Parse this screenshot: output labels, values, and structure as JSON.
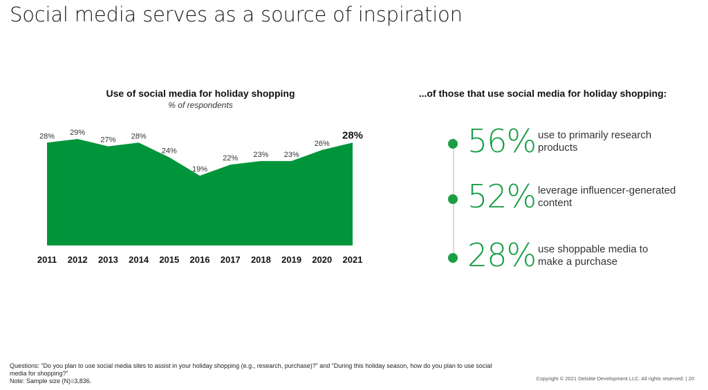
{
  "slide": {
    "title": "Social media serves as a source of inspiration"
  },
  "chart_data": {
    "type": "area",
    "title": "Use of social media for holiday shopping",
    "subtitle": "% of respondents",
    "categories": [
      "2011",
      "2012",
      "2013",
      "2014",
      "2015",
      "2016",
      "2017",
      "2018",
      "2019",
      "2020",
      "2021"
    ],
    "values": [
      28,
      29,
      27,
      28,
      24,
      19,
      22,
      23,
      23,
      26,
      28
    ],
    "data_labels": [
      "28%",
      "29%",
      "27%",
      "28%",
      "24%",
      "19%",
      "22%",
      "23%",
      "23%",
      "26%",
      "28%"
    ],
    "highlight_last": true,
    "ylim": [
      0,
      32
    ],
    "grid": false,
    "legend": "none",
    "color": "#00953a"
  },
  "stats": {
    "title": "...of those that use social media for holiday shopping:",
    "items": [
      {
        "value": "56%",
        "description": "use to primarily research products"
      },
      {
        "value": "52%",
        "description": "leverage influencer-generated content"
      },
      {
        "value": "28%",
        "description": "use shoppable media to make a purchase"
      }
    ],
    "accent_color": "#1a9e46"
  },
  "footer": {
    "questions": "Questions: “Do you plan to use social media sites to assist in your holiday shopping (e.g., research, purchase)?” and “During this holiday season, how do you plan to use social media for shopping?”",
    "note": "Note: Sample size (N)=3,836.",
    "copyright": "Copyright © 2021 Deloitte Development LLC. All rights reserved.  |  20"
  }
}
